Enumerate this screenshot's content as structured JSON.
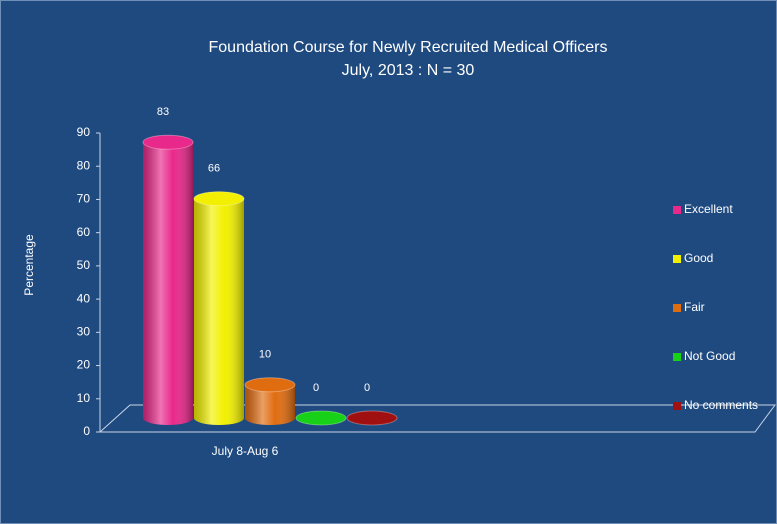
{
  "chart_data": {
    "type": "bar",
    "title": "Foundation Course for Newly Recruited Medical Officers",
    "subtitle": "July, 2013 : N = 30",
    "y_label": "Percentage",
    "categories": [
      "July 8-Aug 6"
    ],
    "ylim": [
      0,
      90
    ],
    "yticks": [
      0,
      10,
      20,
      30,
      40,
      50,
      60,
      70,
      80,
      90
    ],
    "legend": "right",
    "series": [
      {
        "name": "Excellent",
        "color": "#e8288a",
        "values": [
          83
        ]
      },
      {
        "name": "Good",
        "color": "#f2f000",
        "values": [
          66
        ]
      },
      {
        "name": "Fair",
        "color": "#e06c10",
        "values": [
          10
        ]
      },
      {
        "name": "Not Good",
        "color": "#18d018",
        "values": [
          0
        ]
      },
      {
        "name": "No comments",
        "color": "#a01010",
        "values": [
          0
        ]
      }
    ]
  }
}
